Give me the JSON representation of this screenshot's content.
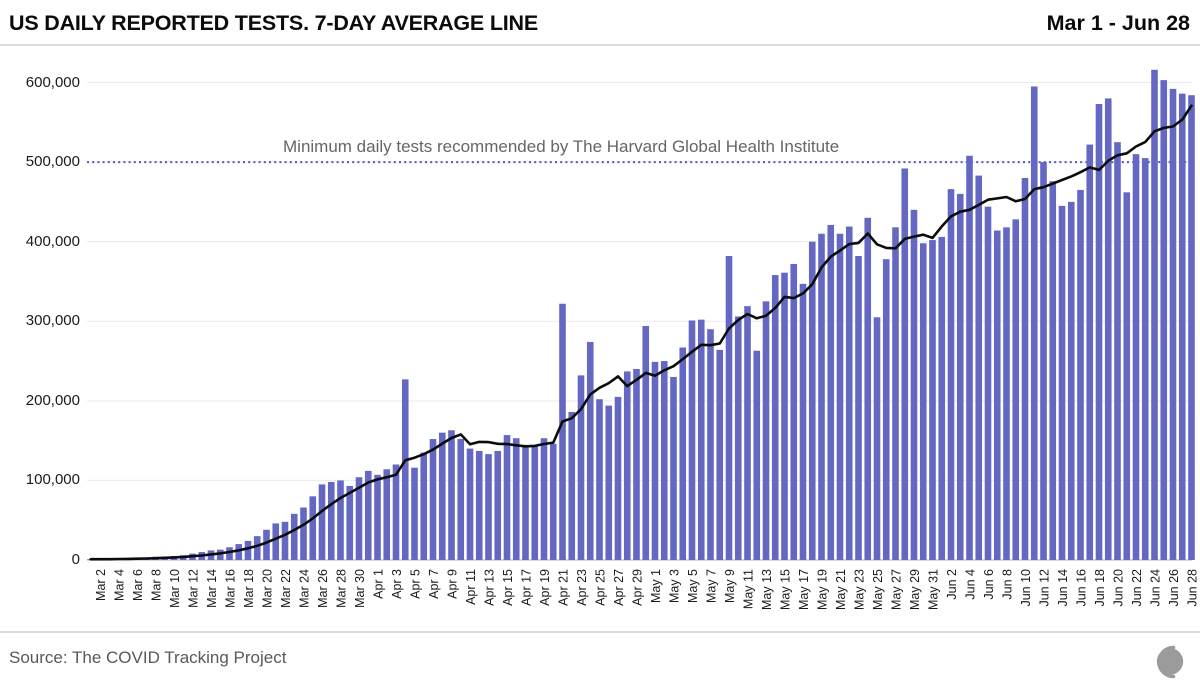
{
  "header": {
    "date_range": "Mar 1 - Jun 28"
  },
  "footer": {
    "source": "Source: The COVID Tracking Project",
    "logo": "covid-tracking-project-logo"
  },
  "colors": {
    "bar": "#6468c2",
    "avg_line": "#0c0c0c",
    "threshold_line": "#5556bb",
    "gridline": "#eaeaf2",
    "zero_line": "#c9c9d2",
    "axis_text": "#1b1b1b",
    "annotation_text": "#666666",
    "separator": "#dbdbdb",
    "logo_gray": "#9b9b9b"
  },
  "chart_data": {
    "type": "bar",
    "title": "US DAILY REPORTED TESTS. 7-DAY AVERAGE LINE",
    "subtitle_right": "Mar 1 - Jun 28",
    "overlay_line": "7-day average of daily values",
    "legend_position": "none",
    "grid": true,
    "ylim": [
      0,
      620000
    ],
    "y_ticks": [
      0,
      100000,
      200000,
      300000,
      400000,
      500000,
      600000
    ],
    "y_tick_labels": [
      "0",
      "100,000",
      "200,000",
      "300,000",
      "400,000",
      "500,000",
      "600,000"
    ],
    "x_tick_every": 2,
    "threshold": {
      "value": 500000,
      "label": "Minimum daily tests recommended by The Harvard Global Health Institute"
    },
    "categories": [
      "Mar 1",
      "Mar 2",
      "Mar 3",
      "Mar 4",
      "Mar 5",
      "Mar 6",
      "Mar 7",
      "Mar 8",
      "Mar 9",
      "Mar 10",
      "Mar 11",
      "Mar 12",
      "Mar 13",
      "Mar 14",
      "Mar 15",
      "Mar 16",
      "Mar 17",
      "Mar 18",
      "Mar 19",
      "Mar 20",
      "Mar 21",
      "Mar 22",
      "Mar 23",
      "Mar 24",
      "Mar 25",
      "Mar 26",
      "Mar 27",
      "Mar 28",
      "Mar 29",
      "Mar 30",
      "Mar 31",
      "Apr 1",
      "Apr 2",
      "Apr 3",
      "Apr 4",
      "Apr 5",
      "Apr 6",
      "Apr 7",
      "Apr 8",
      "Apr 9",
      "Apr 10",
      "Apr 11",
      "Apr 12",
      "Apr 13",
      "Apr 14",
      "Apr 15",
      "Apr 16",
      "Apr 17",
      "Apr 18",
      "Apr 19",
      "Apr 20",
      "Apr 21",
      "Apr 22",
      "Apr 23",
      "Apr 24",
      "Apr 25",
      "Apr 26",
      "Apr 27",
      "Apr 28",
      "Apr 29",
      "Apr 30",
      "May 1",
      "May 2",
      "May 3",
      "May 4",
      "May 5",
      "May 6",
      "May 7",
      "May 8",
      "May 9",
      "May 10",
      "May 11",
      "May 12",
      "May 13",
      "May 14",
      "May 15",
      "May 16",
      "May 17",
      "May 18",
      "May 19",
      "May 20",
      "May 21",
      "May 22",
      "May 23",
      "May 24",
      "May 25",
      "May 26",
      "May 27",
      "May 28",
      "May 29",
      "May 30",
      "May 31",
      "Jun 1",
      "Jun 2",
      "Jun 3",
      "Jun 4",
      "Jun 5",
      "Jun 6",
      "Jun 7",
      "Jun 8",
      "Jun 9",
      "Jun 10",
      "Jun 11",
      "Jun 12",
      "Jun 13",
      "Jun 14",
      "Jun 15",
      "Jun 16",
      "Jun 17",
      "Jun 18",
      "Jun 19",
      "Jun 20",
      "Jun 21",
      "Jun 22",
      "Jun 23",
      "Jun 24",
      "Jun 25",
      "Jun 26",
      "Jun 27",
      "Jun 28"
    ],
    "values": [
      1000,
      1000,
      1000,
      2000,
      2000,
      3000,
      3000,
      4000,
      4000,
      5000,
      6000,
      8000,
      10000,
      12000,
      13000,
      16000,
      20000,
      24000,
      30000,
      38000,
      46000,
      48000,
      58000,
      66000,
      80000,
      95000,
      98000,
      100000,
      93000,
      104000,
      112000,
      107000,
      114000,
      120000,
      227000,
      116000,
      135000,
      152000,
      160000,
      163000,
      152000,
      140000,
      137000,
      133000,
      137000,
      157000,
      153000,
      143000,
      144000,
      153000,
      146000,
      322000,
      186000,
      232000,
      274000,
      202000,
      194000,
      205000,
      237000,
      240000,
      294000,
      249000,
      250000,
      230000,
      267000,
      301000,
      302000,
      290000,
      264000,
      382000,
      306000,
      319000,
      263000,
      325000,
      358000,
      361000,
      372000,
      347000,
      400000,
      410000,
      421000,
      410000,
      419000,
      382000,
      430000,
      305000,
      378000,
      418000,
      492000,
      440000,
      398000,
      402000,
      406000,
      466000,
      460000,
      508000,
      483000,
      444000,
      414000,
      418000,
      428000,
      480000,
      595000,
      500000,
      476000,
      445000,
      450000,
      465000,
      522000,
      573000,
      580000,
      525000,
      462000,
      510000,
      505000,
      616000,
      603000,
      592000,
      586000,
      584000
    ]
  }
}
